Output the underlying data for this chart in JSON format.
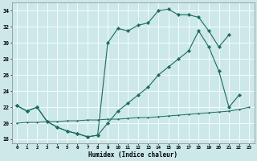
{
  "xlabel": "Humidex (Indice chaleur)",
  "bg_color": "#cce8e8",
  "line_color": "#1a6b60",
  "grid_color": "#b0d8d8",
  "xlim": [
    -0.5,
    23.5
  ],
  "ylim": [
    17.5,
    35.0
  ],
  "xticks": [
    0,
    1,
    2,
    3,
    4,
    5,
    6,
    7,
    8,
    9,
    10,
    11,
    12,
    13,
    14,
    15,
    16,
    17,
    18,
    19,
    20,
    21,
    22,
    23
  ],
  "yticks": [
    18,
    20,
    22,
    24,
    26,
    28,
    30,
    32,
    34
  ],
  "line1_x": [
    0,
    1,
    2,
    3,
    4,
    5,
    6,
    7,
    8,
    9,
    10,
    11,
    12,
    13,
    14,
    15,
    16,
    17,
    18,
    19,
    20,
    21
  ],
  "line1_y": [
    22.2,
    21.5,
    22.0,
    20.2,
    19.5,
    19.0,
    18.7,
    18.3,
    18.5,
    30.0,
    31.8,
    31.5,
    32.2,
    32.5,
    34.0,
    34.2,
    33.5,
    33.5,
    33.2,
    31.5,
    29.5,
    31.0
  ],
  "line2_x": [
    0,
    1,
    2,
    3,
    4,
    5,
    6,
    7,
    8,
    9,
    10,
    11,
    12,
    13,
    14,
    15,
    16,
    17,
    18,
    19,
    20,
    21,
    22,
    23
  ],
  "line2_y": [
    22.2,
    21.5,
    22.0,
    20.2,
    19.5,
    19.0,
    18.7,
    18.3,
    18.5,
    20.0,
    21.5,
    22.5,
    23.5,
    24.5,
    26.0,
    27.0,
    28.0,
    29.0,
    31.5,
    29.5,
    26.5,
    22.0,
    23.5,
    null
  ],
  "line3_x": [
    0,
    1,
    2,
    3,
    4,
    5,
    6,
    7,
    8,
    9,
    10,
    11,
    12,
    13,
    14,
    15,
    16,
    17,
    18,
    19,
    20,
    21,
    22,
    23
  ],
  "line3_y": [
    20.0,
    20.1,
    20.1,
    20.2,
    20.2,
    20.3,
    20.3,
    20.4,
    20.4,
    20.5,
    20.5,
    20.6,
    20.7,
    20.7,
    20.8,
    20.9,
    21.0,
    21.1,
    21.2,
    21.3,
    21.4,
    21.5,
    21.7,
    22.0
  ]
}
